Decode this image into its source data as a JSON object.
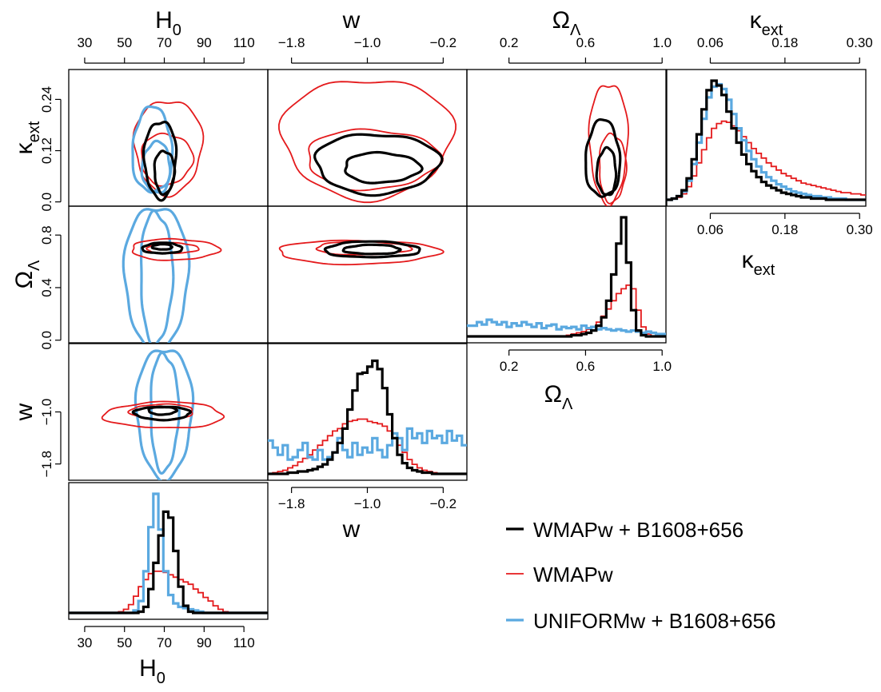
{
  "chart_data": {
    "type": "corner-plot",
    "parameters": [
      {
        "key": "H0",
        "label": "H",
        "sub": "0",
        "range": [
          22,
          122
        ],
        "ticks": [
          "30",
          "50",
          "70",
          "90",
          "110"
        ],
        "tick_values": [
          30,
          50,
          70,
          90,
          110
        ]
      },
      {
        "key": "w",
        "label": "w",
        "sub": "",
        "range": [
          -2.05,
          0.05
        ],
        "ticks": [
          "−1.8",
          "−1.0",
          "−0.2"
        ],
        "tick_values": [
          -1.8,
          -1.0,
          -0.2
        ]
      },
      {
        "key": "omega",
        "label": "Ω",
        "sub": "Λ",
        "range": [
          -0.02,
          1.02
        ],
        "ticks": [
          "0.2",
          "0.6",
          "1.0"
        ],
        "tick_values": [
          0.2,
          0.6,
          1.0
        ]
      },
      {
        "key": "kappa",
        "label": "κ",
        "sub": "ext",
        "range": [
          -0.01,
          0.31
        ],
        "ticks": [
          "0.06",
          "0.18",
          "0.30"
        ],
        "tick_values": [
          0.06,
          0.18,
          0.3
        ]
      }
    ],
    "left_ticks": {
      "kappa": [
        "0.0",
        "0.12",
        "0.24"
      ],
      "kappa_values": [
        0.0,
        0.12,
        0.24
      ],
      "omega": [
        "0.0",
        "0.4",
        "0.8"
      ],
      "omega_values": [
        0.0,
        0.4,
        0.8
      ],
      "w": [
        "−1.8",
        "−1.0"
      ],
      "w_values": [
        -1.8,
        -1.0
      ]
    },
    "series": [
      {
        "name": "WMAPw + B1608+656",
        "color": "#000000",
        "width": 3.2
      },
      {
        "name": "WMAPw",
        "color": "#e41a1c",
        "width": 1.8
      },
      {
        "name": "UNIFORMw + B1608+656",
        "color": "#5ba9e0",
        "width": 3.2
      }
    ],
    "marginals": {
      "H0": {
        "edges": [
          22,
          122
        ],
        "black": [
          0,
          0,
          0,
          0,
          0,
          0,
          0,
          0,
          0,
          0,
          0,
          0,
          0,
          0,
          0.01,
          0.05,
          0.2,
          0.42,
          0.65,
          0.85,
          0.8,
          0.52,
          0.22,
          0.06,
          0.01,
          0,
          0,
          0,
          0,
          0,
          0,
          0,
          0,
          0,
          0,
          0,
          0,
          0,
          0,
          0
        ],
        "red": [
          0,
          0,
          0,
          0,
          0,
          0,
          0,
          0,
          0,
          0,
          0.01,
          0.03,
          0.07,
          0.14,
          0.22,
          0.28,
          0.33,
          0.35,
          0.35,
          0.34,
          0.32,
          0.3,
          0.28,
          0.26,
          0.24,
          0.2,
          0.17,
          0.13,
          0.1,
          0.06,
          0.03,
          0.01,
          0,
          0,
          0,
          0,
          0,
          0,
          0,
          0
        ],
        "blue": [
          0,
          0,
          0,
          0,
          0,
          0,
          0,
          0,
          0,
          0,
          0,
          0,
          0,
          0.02,
          0.1,
          0.35,
          0.72,
          1.0,
          0.7,
          0.35,
          0.15,
          0.08,
          0.05,
          0.04,
          0.03,
          0.02,
          0.01,
          0,
          0,
          0,
          0,
          0,
          0,
          0,
          0,
          0,
          0,
          0,
          0,
          0
        ]
      },
      "w": {
        "edges": [
          -2.05,
          0.05
        ],
        "black": [
          0,
          0,
          0,
          0,
          0.01,
          0.01,
          0.02,
          0.02,
          0.03,
          0.04,
          0.06,
          0.08,
          0.12,
          0.18,
          0.26,
          0.38,
          0.54,
          0.7,
          0.84,
          0.85,
          0.9,
          0.95,
          0.88,
          0.72,
          0.5,
          0.3,
          0.16,
          0.09,
          0.05,
          0.03,
          0.02,
          0.01,
          0.01,
          0,
          0,
          0,
          0,
          0,
          0,
          0
        ],
        "red": [
          0,
          0.01,
          0.02,
          0.03,
          0.05,
          0.07,
          0.1,
          0.13,
          0.16,
          0.2,
          0.24,
          0.28,
          0.32,
          0.36,
          0.38,
          0.42,
          0.44,
          0.45,
          0.46,
          0.46,
          0.44,
          0.43,
          0.42,
          0.4,
          0.36,
          0.3,
          0.24,
          0.18,
          0.12,
          0.08,
          0.05,
          0.03,
          0.02,
          0.01,
          0,
          0,
          0,
          0,
          0,
          0
        ],
        "blue": [
          0.28,
          0.22,
          0.16,
          0.24,
          0.12,
          0.14,
          0.2,
          0.26,
          0.14,
          0.12,
          0.2,
          0.12,
          0.14,
          0.18,
          0.3,
          0.2,
          0.14,
          0.26,
          0.16,
          0.22,
          0.18,
          0.3,
          0.2,
          0.14,
          0.24,
          0.34,
          0.3,
          0.2,
          0.38,
          0.3,
          0.34,
          0.26,
          0.36,
          0.3,
          0.32,
          0.26,
          0.36,
          0.28,
          0.32,
          0.24
        ]
      },
      "omega": {
        "edges": [
          -0.02,
          1.02
        ],
        "black": [
          0,
          0,
          0,
          0,
          0,
          0,
          0,
          0,
          0,
          0,
          0,
          0,
          0,
          0,
          0,
          0,
          0,
          0,
          0,
          0,
          0,
          0.01,
          0.01,
          0.02,
          0.03,
          0.05,
          0.09,
          0.16,
          0.3,
          0.52,
          0.78,
          1.0,
          0.62,
          0.22,
          0.05,
          0.01,
          0,
          0,
          0,
          0
        ],
        "red": [
          0,
          0,
          0,
          0,
          0,
          0,
          0,
          0,
          0,
          0,
          0,
          0,
          0,
          0,
          0,
          0,
          0,
          0,
          0,
          0,
          0.01,
          0.02,
          0.03,
          0.04,
          0.06,
          0.08,
          0.12,
          0.17,
          0.23,
          0.3,
          0.36,
          0.4,
          0.43,
          0.4,
          0.22,
          0.08,
          0.02,
          0,
          0,
          0
        ],
        "blue": [
          0.09,
          0.09,
          0.12,
          0.1,
          0.14,
          0.12,
          0.1,
          0.12,
          0.08,
          0.11,
          0.09,
          0.12,
          0.1,
          0.08,
          0.11,
          0.07,
          0.09,
          0.1,
          0.06,
          0.08,
          0.07,
          0.08,
          0.06,
          0.09,
          0.07,
          0.08,
          0.06,
          0.07,
          0.06,
          0.05,
          0.06,
          0.05,
          0.04,
          0.05,
          0.04,
          0.03,
          0.04,
          0.03,
          0.02,
          0.02
        ]
      },
      "kappa": {
        "edges": [
          -0.01,
          0.31
        ],
        "black": [
          0,
          0.01,
          0.03,
          0.08,
          0.18,
          0.34,
          0.55,
          0.76,
          0.92,
          1.0,
          0.96,
          0.88,
          0.74,
          0.6,
          0.48,
          0.38,
          0.3,
          0.24,
          0.19,
          0.15,
          0.12,
          0.1,
          0.08,
          0.06,
          0.05,
          0.04,
          0.03,
          0.02,
          0.02,
          0.01,
          0.01,
          0.01,
          0,
          0,
          0,
          0,
          0,
          0,
          0,
          0
        ],
        "red": [
          0,
          0.01,
          0.02,
          0.05,
          0.11,
          0.2,
          0.31,
          0.42,
          0.52,
          0.6,
          0.64,
          0.66,
          0.65,
          0.62,
          0.58,
          0.53,
          0.48,
          0.43,
          0.39,
          0.35,
          0.31,
          0.28,
          0.25,
          0.22,
          0.2,
          0.18,
          0.16,
          0.14,
          0.13,
          0.12,
          0.11,
          0.1,
          0.09,
          0.08,
          0.07,
          0.06,
          0.06,
          0.05,
          0.05,
          0.04
        ],
        "blue": [
          0,
          0.01,
          0.03,
          0.07,
          0.16,
          0.3,
          0.48,
          0.68,
          0.86,
          0.95,
          0.97,
          0.93,
          0.84,
          0.72,
          0.6,
          0.5,
          0.41,
          0.34,
          0.28,
          0.23,
          0.19,
          0.16,
          0.13,
          0.11,
          0.09,
          0.07,
          0.06,
          0.05,
          0.04,
          0.03,
          0.03,
          0.02,
          0.02,
          0.01,
          0.01,
          0.01,
          0,
          0,
          0,
          0
        ]
      }
    },
    "contours": [
      {
        "x": "H0",
        "y": "kappa",
        "levels": [
          {
            "series": "red",
            "level": 2,
            "cx": 72,
            "cy": 0.13,
            "sx": 17,
            "sy": 0.11,
            "rot": 0
          },
          {
            "series": "red",
            "level": 1,
            "cx": 71,
            "cy": 0.1,
            "sx": 13,
            "sy": 0.06,
            "rot": 0
          },
          {
            "series": "blue",
            "level": 2,
            "cx": 64,
            "cy": 0.12,
            "sx": 10,
            "sy": 0.1,
            "rot": -0.4
          },
          {
            "series": "blue",
            "level": 1,
            "cx": 66,
            "cy": 0.08,
            "sx": 7,
            "sy": 0.06,
            "rot": -0.4
          },
          {
            "series": "black",
            "level": 2,
            "cx": 68,
            "cy": 0.1,
            "sx": 8,
            "sy": 0.09,
            "rot": -0.6
          },
          {
            "series": "black",
            "level": 1,
            "cx": 70,
            "cy": 0.07,
            "sx": 5,
            "sy": 0.05,
            "rot": -0.6
          }
        ]
      },
      {
        "x": "w",
        "y": "kappa",
        "levels": [
          {
            "series": "red",
            "level": 2,
            "cx": -1.0,
            "cy": 0.15,
            "sx": 0.9,
            "sy": 0.14,
            "rot": 0
          },
          {
            "series": "red",
            "level": 1,
            "cx": -0.95,
            "cy": 0.1,
            "sx": 0.7,
            "sy": 0.07,
            "rot": 0
          },
          {
            "series": "black",
            "level": 2,
            "cx": -0.9,
            "cy": 0.09,
            "sx": 0.65,
            "sy": 0.07,
            "rot": 0.5
          },
          {
            "series": "black",
            "level": 1,
            "cx": -0.85,
            "cy": 0.08,
            "sx": 0.4,
            "sy": 0.035,
            "rot": 0.5
          }
        ]
      },
      {
        "x": "omega",
        "y": "kappa",
        "levels": [
          {
            "series": "red",
            "level": 2,
            "cx": 0.72,
            "cy": 0.14,
            "sx": 0.1,
            "sy": 0.14,
            "rot": 0
          },
          {
            "series": "red",
            "level": 1,
            "cx": 0.74,
            "cy": 0.08,
            "sx": 0.07,
            "sy": 0.08,
            "rot": 0
          },
          {
            "series": "black",
            "level": 2,
            "cx": 0.69,
            "cy": 0.1,
            "sx": 0.09,
            "sy": 0.09,
            "rot": -0.4
          },
          {
            "series": "black",
            "level": 1,
            "cx": 0.71,
            "cy": 0.07,
            "sx": 0.05,
            "sy": 0.055,
            "rot": -0.4
          }
        ]
      },
      {
        "x": "H0",
        "y": "omega",
        "levels": [
          {
            "series": "blue",
            "level": 2,
            "cx": 66,
            "cy": 0.48,
            "sx": 16,
            "sy": 0.55,
            "rot": 0
          },
          {
            "series": "blue",
            "level": 1,
            "cx": 66,
            "cy": 0.48,
            "sx": 8,
            "sy": 0.5,
            "rot": 0
          },
          {
            "series": "red",
            "level": 2,
            "cx": 75,
            "cy": 0.69,
            "sx": 22,
            "sy": 0.08,
            "rot": 0.22
          },
          {
            "series": "red",
            "level": 1,
            "cx": 74,
            "cy": 0.7,
            "sx": 13,
            "sy": 0.04,
            "rot": 0.22
          },
          {
            "series": "black",
            "level": 2,
            "cx": 69,
            "cy": 0.7,
            "sx": 10,
            "sy": 0.04,
            "rot": 0.25
          },
          {
            "series": "black",
            "level": 1,
            "cx": 69,
            "cy": 0.71,
            "sx": 5,
            "sy": 0.02,
            "rot": 0.25
          }
        ]
      },
      {
        "x": "w",
        "y": "omega",
        "levels": [
          {
            "series": "red",
            "level": 2,
            "cx": -1.1,
            "cy": 0.67,
            "sx": 0.85,
            "sy": 0.09,
            "rot": -0.25
          },
          {
            "series": "red",
            "level": 1,
            "cx": -1.05,
            "cy": 0.7,
            "sx": 0.5,
            "sy": 0.05,
            "rot": -0.25
          },
          {
            "series": "black",
            "level": 2,
            "cx": -0.95,
            "cy": 0.69,
            "sx": 0.5,
            "sy": 0.06,
            "rot": -0.25
          },
          {
            "series": "black",
            "level": 1,
            "cx": -0.95,
            "cy": 0.69,
            "sx": 0.3,
            "sy": 0.035,
            "rot": -0.25
          }
        ]
      },
      {
        "x": "H0",
        "y": "w",
        "levels": [
          {
            "series": "blue",
            "level": 2,
            "cx": 70,
            "cy": -1.0,
            "sx": 14,
            "sy": 1.0,
            "rot": 0
          },
          {
            "series": "blue",
            "level": 1,
            "cx": 70,
            "cy": -1.0,
            "sx": 7,
            "sy": 0.9,
            "rot": 0
          },
          {
            "series": "red",
            "level": 2,
            "cx": 70,
            "cy": -1.05,
            "sx": 30,
            "sy": 0.2,
            "rot": -0.65
          },
          {
            "series": "red",
            "level": 1,
            "cx": 69,
            "cy": -1.0,
            "sx": 16,
            "sy": 0.12,
            "rot": -0.65
          },
          {
            "series": "black",
            "level": 2,
            "cx": 69,
            "cy": -1.02,
            "sx": 14,
            "sy": 0.1,
            "rot": -0.62
          },
          {
            "series": "black",
            "level": 1,
            "cx": 69,
            "cy": -0.98,
            "sx": 7,
            "sy": 0.06,
            "rot": -0.62
          }
        ]
      }
    ],
    "legend": [
      "WMAPw + B1608+656",
      "WMAPw",
      "UNIFORMw + B1608+656"
    ],
    "grid": false,
    "legend_position": "bottom-right"
  }
}
